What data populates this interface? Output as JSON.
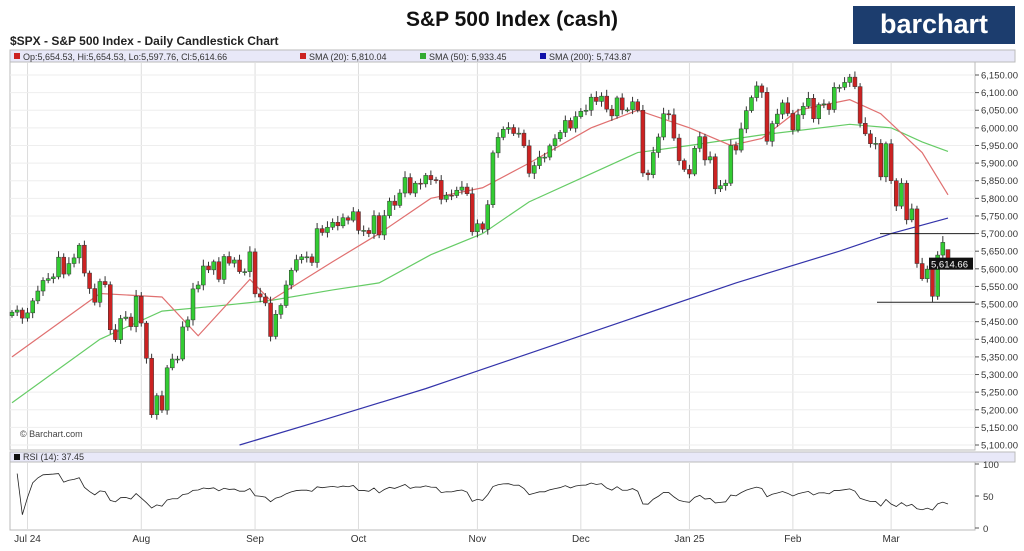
{
  "title": "S&P 500 Index (cash)",
  "logo": "barchart",
  "subtitle": "$SPX - S&P 500 Index - Daily Candlestick Chart",
  "legend": {
    "ohlc": "Op:5,654.53, Hi:5,654.53, Lo:5,597.76, Cl:5,614.66",
    "sma20": "SMA (20): 5,810.04",
    "sma50": "SMA (50): 5,933.45",
    "sma200": "SMA (200): 5,743.87",
    "rsi": "RSI (14): 37.45"
  },
  "copyright": "© Barchart.com",
  "last_price_tag": "5,614.66",
  "colors": {
    "up": "#33cc33",
    "down": "#cc2222",
    "sma20": "#e07070",
    "sma50": "#66cc66",
    "sma200": "#3333aa",
    "logo": "#1c3d6e"
  },
  "chart_data": {
    "type": "candlestick",
    "title": "S&P 500 Index (cash)",
    "ylim": [
      5100,
      6150
    ],
    "yticks": [
      5100,
      5150,
      5200,
      5250,
      5300,
      5350,
      5400,
      5450,
      5500,
      5550,
      5600,
      5650,
      5700,
      5750,
      5800,
      5850,
      5900,
      5950,
      6000,
      6050,
      6100,
      6150
    ],
    "ytick_labels": [
      "5,100.00",
      "5,150.00",
      "5,200.00",
      "5,250.00",
      "5,300.00",
      "5,350.00",
      "5,400.00",
      "5,450.00",
      "5,500.00",
      "5,550.00",
      "5,600.00",
      "5,650.00",
      "5,700.00",
      "5,750.00",
      "5,800.00",
      "5,850.00",
      "5,900.00",
      "5,950.00",
      "6,000.00",
      "6,050.00",
      "6,100.00",
      "6,150.00"
    ],
    "xlabels": [
      {
        "label": "Jul 24",
        "index": 3
      },
      {
        "label": "Aug",
        "index": 25
      },
      {
        "label": "Sep",
        "index": 47
      },
      {
        "label": "Oct",
        "index": 67
      },
      {
        "label": "Nov",
        "index": 90
      },
      {
        "label": "Dec",
        "index": 110
      },
      {
        "label": "Jan 25",
        "index": 131
      },
      {
        "label": "Feb",
        "index": 151
      },
      {
        "label": "Mar",
        "index": 170
      }
    ],
    "closes": [
      5477,
      5483,
      5460,
      5475,
      5509,
      5537,
      5567,
      5572,
      5577,
      5633,
      5585,
      5615,
      5631,
      5667,
      5588,
      5544,
      5505,
      5564,
      5555,
      5427,
      5399,
      5459,
      5463,
      5436,
      5522,
      5446,
      5346,
      5186,
      5240,
      5199,
      5319,
      5344,
      5344,
      5435,
      5455,
      5543,
      5554,
      5608,
      5597,
      5620,
      5570,
      5635,
      5616,
      5625,
      5592,
      5592,
      5648,
      5529,
      5520,
      5503,
      5408,
      5471,
      5496,
      5554,
      5596,
      5626,
      5634,
      5634,
      5618,
      5714,
      5703,
      5718,
      5732,
      5722,
      5745,
      5738,
      5762,
      5709,
      5709,
      5700,
      5751,
      5696,
      5751,
      5792,
      5780,
      5815,
      5859,
      5815,
      5843,
      5841,
      5865,
      5853,
      5851,
      5797,
      5809,
      5808,
      5823,
      5832,
      5813,
      5705,
      5728,
      5712,
      5782,
      5929,
      5973,
      5996,
      6001,
      5984,
      5985,
      5949,
      5871,
      5893,
      5917,
      5917,
      5949,
      5969,
      5987,
      6021,
      5999,
      6032,
      6047,
      6050,
      6087,
      6075,
      6090,
      6053,
      6034,
      6085,
      6051,
      6051,
      6074,
      6050,
      5872,
      5867,
      5930,
      5974,
      6040,
      6037,
      5971,
      5907,
      5882,
      5869,
      5942,
      5975,
      5909,
      5918,
      5827,
      5836,
      5843,
      5950,
      5937,
      5997,
      6049,
      6086,
      6119,
      6101,
      5962,
      6012,
      6039,
      6071,
      6041,
      5994,
      6037,
      6061,
      6084,
      6026,
      6066,
      6068,
      6052,
      6115,
      6115,
      6129,
      6144,
      6117,
      6013,
      5983,
      5955,
      5956,
      5861,
      5955,
      5850,
      5778,
      5843,
      5739,
      5770,
      5615,
      5572,
      5599,
      5522,
      5639,
      5675,
      5614.66
    ],
    "last_candle": {
      "open": 5654.53,
      "high": 5654.53,
      "low": 5597.76,
      "close": 5614.66
    },
    "sma20": [
      [
        0,
        5350
      ],
      [
        17,
        5530
      ],
      [
        29,
        5520
      ],
      [
        36,
        5410
      ],
      [
        46,
        5570
      ],
      [
        50,
        5510
      ],
      [
        62,
        5620
      ],
      [
        71,
        5700
      ],
      [
        81,
        5800
      ],
      [
        91,
        5830
      ],
      [
        100,
        5900
      ],
      [
        112,
        6000
      ],
      [
        121,
        6050
      ],
      [
        131,
        6000
      ],
      [
        139,
        5950
      ],
      [
        145,
        5970
      ],
      [
        152,
        6050
      ],
      [
        162,
        6080
      ],
      [
        168,
        6040
      ],
      [
        176,
        5930
      ],
      [
        181,
        5810
      ]
    ],
    "sma50": [
      [
        0,
        5220
      ],
      [
        17,
        5400
      ],
      [
        29,
        5480
      ],
      [
        40,
        5495
      ],
      [
        50,
        5510
      ],
      [
        62,
        5540
      ],
      [
        71,
        5560
      ],
      [
        81,
        5640
      ],
      [
        91,
        5700
      ],
      [
        100,
        5790
      ],
      [
        112,
        5870
      ],
      [
        121,
        5930
      ],
      [
        131,
        5950
      ],
      [
        145,
        5980
      ],
      [
        162,
        6010
      ],
      [
        170,
        6000
      ],
      [
        176,
        5960
      ],
      [
        181,
        5933
      ]
    ],
    "sma200": [
      [
        44,
        5100
      ],
      [
        60,
        5170
      ],
      [
        80,
        5260
      ],
      [
        100,
        5360
      ],
      [
        120,
        5460
      ],
      [
        140,
        5560
      ],
      [
        160,
        5650
      ],
      [
        170,
        5700
      ],
      [
        181,
        5744
      ]
    ],
    "hlines": [
      5700,
      5505
    ],
    "rsi_ticks": [
      0,
      50,
      100
    ]
  }
}
